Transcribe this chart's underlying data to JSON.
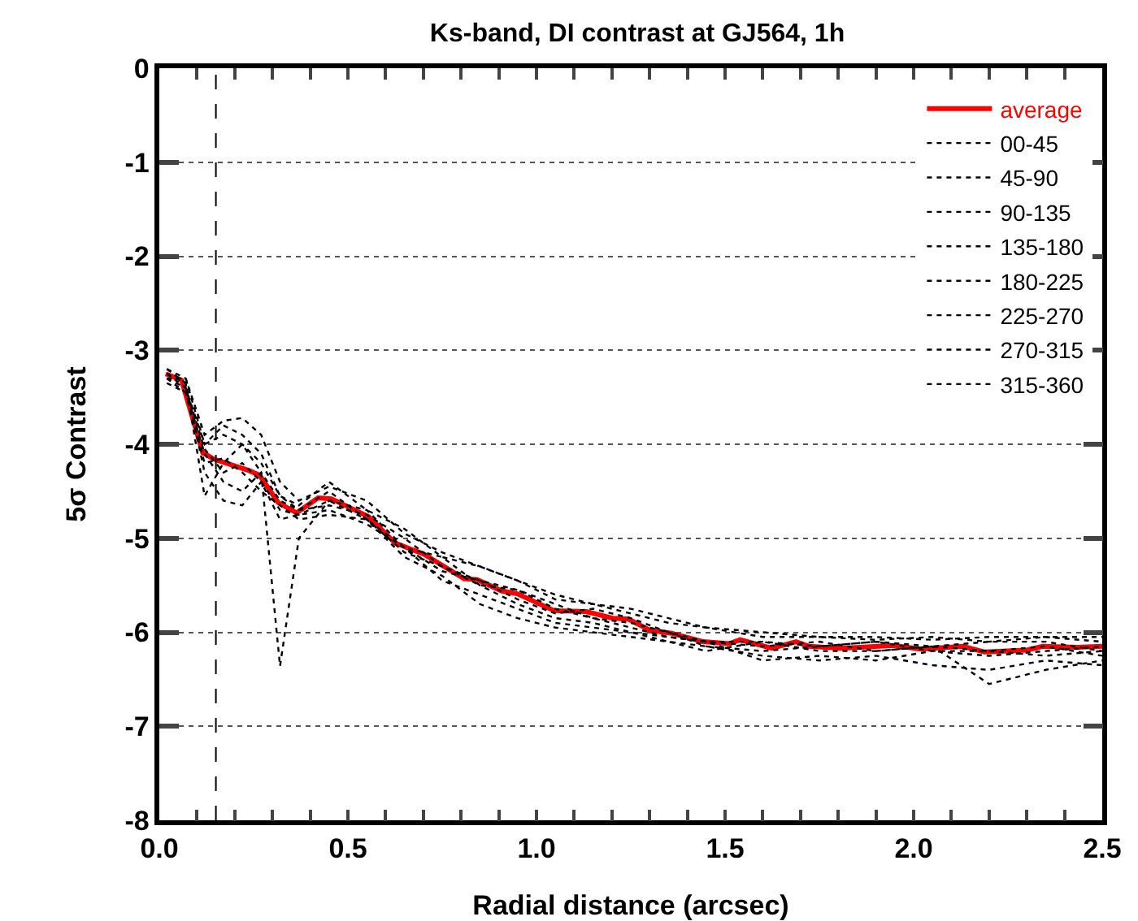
{
  "chart_data": {
    "type": "line",
    "title": "Ks-band, DI contrast at GJ564, 1h",
    "xlabel": "Radial distance (arcsec)",
    "ylabel": "5σ Contrast",
    "x": [
      0.02,
      0.07,
      0.12,
      0.17,
      0.22,
      0.27,
      0.32,
      0.37,
      0.45,
      0.55,
      0.65,
      0.75,
      0.85,
      0.95,
      1.05,
      1.15,
      1.25,
      1.35,
      1.45,
      1.6,
      1.75,
      1.9,
      2.05,
      2.2,
      2.35,
      2.5
    ],
    "series": [
      {
        "name": "average",
        "color": "#ff0000",
        "line_style": "solid",
        "x": [
          0.017,
          0.059,
          0.115,
          0.146,
          0.238,
          0.266,
          0.315,
          0.364,
          0.421,
          0.456,
          0.555,
          0.625,
          0.702,
          0.808,
          0.843,
          0.907,
          0.949,
          1.047,
          1.132,
          1.202,
          1.244,
          1.301,
          1.358,
          1.442,
          1.512,
          1.54,
          1.624,
          1.688,
          1.723,
          1.807,
          1.948,
          2.019,
          2.131,
          2.188,
          2.3,
          2.342,
          2.434,
          2.5
        ],
        "values": [
          -3.25,
          -3.32,
          -4.09,
          -4.16,
          -4.28,
          -4.33,
          -4.62,
          -4.73,
          -4.57,
          -4.58,
          -4.77,
          -5.05,
          -5.17,
          -5.43,
          -5.44,
          -5.56,
          -5.59,
          -5.77,
          -5.78,
          -5.85,
          -5.86,
          -5.98,
          -6.01,
          -6.1,
          -6.12,
          -6.08,
          -6.17,
          -6.1,
          -6.15,
          -6.17,
          -6.14,
          -6.18,
          -6.15,
          -6.21,
          -6.19,
          -6.15,
          -6.16,
          -6.15
        ]
      },
      {
        "name": "00-45",
        "color": "#000000",
        "line_style": "dotted",
        "values": [
          -3.2,
          -3.3,
          -3.9,
          -3.75,
          -3.72,
          -3.9,
          -4.4,
          -4.6,
          -4.45,
          -4.6,
          -4.95,
          -5.15,
          -5.3,
          -5.45,
          -5.6,
          -5.7,
          -5.8,
          -5.9,
          -5.95,
          -6.05,
          -6.05,
          -6.05,
          -6.08,
          -6.05,
          -6.05,
          -6.05
        ]
      },
      {
        "name": "45-90",
        "color": "#000000",
        "line_style": "dotted",
        "values": [
          -3.3,
          -3.4,
          -4.0,
          -3.8,
          -3.9,
          -4.1,
          -4.55,
          -4.7,
          -4.65,
          -4.75,
          -5.0,
          -5.3,
          -5.5,
          -5.55,
          -5.75,
          -5.85,
          -5.9,
          -6.0,
          -6.15,
          -6.2,
          -6.15,
          -6.1,
          -6.2,
          -6.25,
          -6.2,
          -6.15
        ]
      },
      {
        "name": "90-135",
        "color": "#000000",
        "line_style": "dotted",
        "values": [
          -3.25,
          -3.35,
          -4.55,
          -4.2,
          -4.0,
          -4.3,
          -6.36,
          -5.0,
          -4.6,
          -4.7,
          -5.1,
          -5.2,
          -5.5,
          -5.7,
          -5.85,
          -5.9,
          -6.0,
          -6.1,
          -6.15,
          -6.25,
          -6.3,
          -6.25,
          -6.35,
          -6.4,
          -6.3,
          -6.35
        ]
      },
      {
        "name": "135-180",
        "color": "#000000",
        "line_style": "dotted",
        "values": [
          -3.3,
          -3.45,
          -4.1,
          -4.4,
          -4.5,
          -4.3,
          -4.6,
          -4.7,
          -4.5,
          -4.8,
          -5.2,
          -5.4,
          -5.7,
          -5.85,
          -5.95,
          -6.0,
          -6.05,
          -6.1,
          -6.2,
          -6.1,
          -6.2,
          -6.2,
          -6.15,
          -6.55,
          -6.4,
          -6.3
        ]
      },
      {
        "name": "180-225",
        "color": "#000000",
        "line_style": "dotted",
        "values": [
          -3.2,
          -3.35,
          -4.3,
          -4.6,
          -4.65,
          -4.4,
          -4.8,
          -4.75,
          -4.7,
          -4.85,
          -5.1,
          -5.45,
          -5.6,
          -5.75,
          -5.9,
          -5.95,
          -6.0,
          -6.05,
          -6.1,
          -6.3,
          -6.25,
          -6.3,
          -6.2,
          -6.2,
          -6.25,
          -6.2
        ]
      },
      {
        "name": "225-270",
        "color": "#000000",
        "line_style": "dotted",
        "values": [
          -3.3,
          -3.3,
          -4.0,
          -3.9,
          -4.0,
          -4.2,
          -4.55,
          -4.65,
          -4.4,
          -4.7,
          -4.9,
          -5.2,
          -5.3,
          -5.45,
          -5.65,
          -5.7,
          -5.75,
          -5.85,
          -5.95,
          -6.0,
          -6.05,
          -6.08,
          -6.05,
          -6.1,
          -6.05,
          -6.1
        ]
      },
      {
        "name": "270-315",
        "color": "#000000",
        "line_style": "dotted",
        "values": [
          -3.35,
          -3.45,
          -4.2,
          -4.15,
          -4.3,
          -4.5,
          -4.65,
          -4.8,
          -4.75,
          -4.8,
          -5.1,
          -5.35,
          -5.45,
          -5.65,
          -5.8,
          -5.75,
          -5.85,
          -6.0,
          -6.1,
          -6.15,
          -6.1,
          -6.2,
          -6.15,
          -6.1,
          -6.1,
          -6.2
        ]
      },
      {
        "name": "315-360",
        "color": "#000000",
        "line_style": "dotted",
        "values": [
          -3.25,
          -3.4,
          -4.05,
          -4.3,
          -4.2,
          -4.4,
          -4.7,
          -4.75,
          -4.6,
          -4.8,
          -5.15,
          -5.3,
          -5.45,
          -5.55,
          -5.7,
          -5.85,
          -5.95,
          -6.05,
          -6.1,
          -6.1,
          -6.15,
          -6.1,
          -6.15,
          -6.2,
          -6.15,
          -6.25
        ]
      }
    ],
    "xlim": [
      0,
      2.5
    ],
    "ylim": [
      -8,
      0
    ],
    "xticks": [
      {
        "value": 0,
        "label": "0.0"
      },
      {
        "value": 0.1,
        "label": null
      },
      {
        "value": 0.2,
        "label": null
      },
      {
        "value": 0.3,
        "label": null
      },
      {
        "value": 0.4,
        "label": null
      },
      0.5,
      {
        "value": 0.6,
        "label": null
      },
      {
        "value": 0.7,
        "label": null
      },
      {
        "value": 0.8,
        "label": null
      },
      {
        "value": 0.9,
        "label": null
      },
      {
        "value": 1,
        "label": "1.0"
      },
      {
        "value": 1.1,
        "label": null
      },
      {
        "value": 1.2,
        "label": null
      },
      {
        "value": 1.3,
        "label": null
      },
      {
        "value": 1.4,
        "label": null
      },
      1.5,
      {
        "value": 1.6,
        "label": null
      },
      {
        "value": 1.7,
        "label": null
      },
      {
        "value": 1.8,
        "label": null
      },
      {
        "value": 1.9,
        "label": null
      },
      {
        "value": 2,
        "label": "2.0"
      },
      {
        "value": 2.1,
        "label": null
      },
      {
        "value": 2.2,
        "label": null
      },
      {
        "value": 2.3,
        "label": null
      },
      {
        "value": 2.4,
        "label": null
      },
      2.5
    ],
    "yticks": [
      -8,
      -7,
      -6,
      -5,
      -4,
      -3,
      -2,
      -1,
      0
    ],
    "grid": "y",
    "legend": "top right",
    "marker": "none",
    "ref_lines": [
      {
        "axis": "x",
        "value": 0.15,
        "color": "#000000",
        "line_style": "dashed"
      }
    ]
  }
}
